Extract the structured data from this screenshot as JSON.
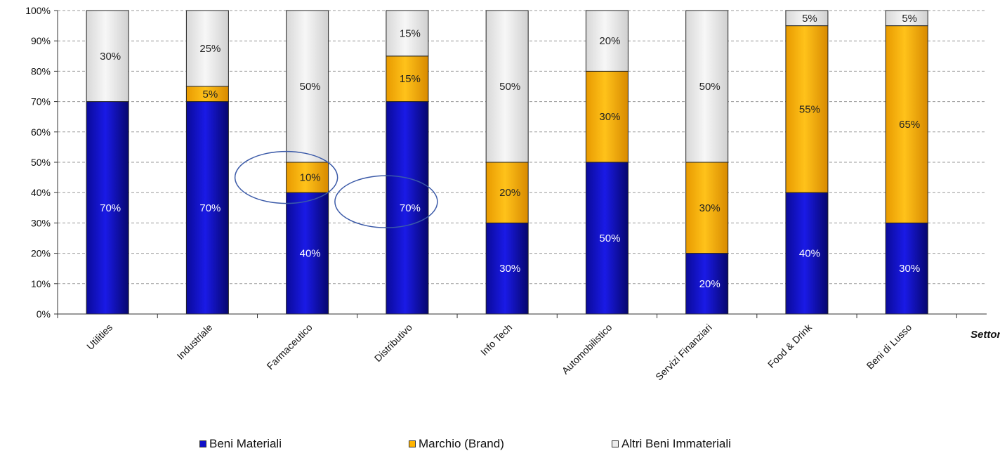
{
  "chart_data": {
    "type": "bar",
    "stacked": true,
    "percent_stacked": true,
    "categories": [
      "Utilities",
      "Industriale",
      "Farmaceutico",
      "Distributivo",
      "Info Tech",
      "Automobilistico",
      "Servizi Finanziari",
      "Food & Drink",
      "Beni di Lusso"
    ],
    "series": [
      {
        "name": "Beni Materiali",
        "values": [
          70,
          70,
          40,
          70,
          30,
          50,
          20,
          40,
          30
        ],
        "color": "#1010c8"
      },
      {
        "name": "Marchio (Brand)",
        "values": [
          0,
          5,
          10,
          15,
          20,
          30,
          30,
          55,
          65
        ],
        "color": "#ffb400"
      },
      {
        "name": "Altri Beni Immateriali",
        "values": [
          30,
          25,
          50,
          15,
          50,
          20,
          50,
          5,
          5
        ],
        "color": "#ececec"
      }
    ],
    "data_labels": [
      [
        "70%",
        "70%",
        "40%",
        "70%",
        "30%",
        "50%",
        "20%",
        "40%",
        "30%"
      ],
      [
        "",
        "5%",
        "10%",
        "15%",
        "20%",
        "30%",
        "30%",
        "55%",
        "65%"
      ],
      [
        "30%",
        "25%",
        "50%",
        "15%",
        "50%",
        "20%",
        "50%",
        "5%",
        "5%"
      ]
    ],
    "y_ticks": [
      "0%",
      "10%",
      "20%",
      "30%",
      "40%",
      "50%",
      "60%",
      "70%",
      "80%",
      "90%",
      "100%"
    ],
    "ylim": [
      0,
      100
    ],
    "xlabel": "Settore",
    "ylabel": "",
    "title": "",
    "grid": "horizontal-dashed",
    "legend_position": "bottom",
    "annotations": [
      {
        "type": "ellipse",
        "category": "Farmaceutico",
        "around_value": 45
      },
      {
        "type": "ellipse",
        "category": "Distributivo",
        "around_value": 37
      }
    ]
  }
}
